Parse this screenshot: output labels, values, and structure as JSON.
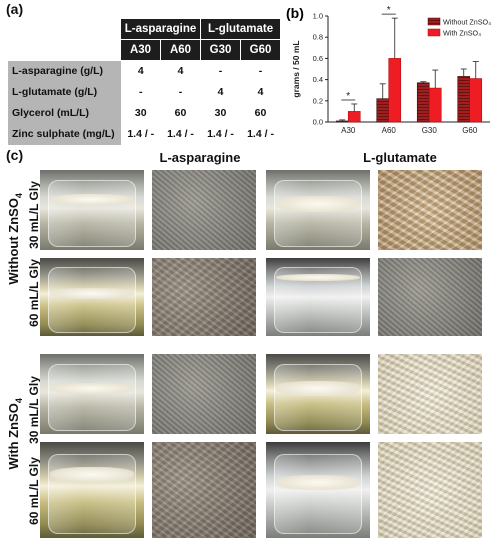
{
  "panels": {
    "a": "(a)",
    "b": "(b)",
    "c": "(c)"
  },
  "table": {
    "group_headers": [
      "L-asparagine",
      "L-glutamate"
    ],
    "columns": [
      "A30",
      "A60",
      "G30",
      "G60"
    ],
    "rows": [
      {
        "label": "L-asparagine (g/L)",
        "values": [
          "4",
          "4",
          "-",
          "-"
        ]
      },
      {
        "label": "L-glutamate (g/L)",
        "values": [
          "-",
          "-",
          "4",
          "4"
        ]
      },
      {
        "label": "Glycerol (mL/L)",
        "values": [
          "30",
          "60",
          "30",
          "60"
        ]
      },
      {
        "label": "Zinc sulphate (mg/L)",
        "values": [
          "1.4 / -",
          "1.4 / -",
          "1.4 / -",
          "1.4 / -"
        ]
      }
    ]
  },
  "chart_data": {
    "type": "bar",
    "categories": [
      "A30",
      "A60",
      "G30",
      "G60"
    ],
    "series": [
      {
        "name": "Without ZnSO₄",
        "values": [
          0.01,
          0.22,
          0.37,
          0.43
        ],
        "errors": [
          0.01,
          0.14,
          0.01,
          0.07
        ],
        "color": "#9e1f1f"
      },
      {
        "name": "With ZnSO₄",
        "values": [
          0.1,
          0.6,
          0.32,
          0.41
        ],
        "errors": [
          0.07,
          0.38,
          0.17,
          0.16
        ],
        "color": "#ee1d23"
      }
    ],
    "ylabel": "grams / 50 mL",
    "ylim": [
      0,
      1.0
    ],
    "yticks": [
      "0.0",
      "0.2",
      "0.4",
      "0.6",
      "0.8",
      "1.0"
    ],
    "significance": [
      {
        "category": "A30",
        "label": "*"
      },
      {
        "category": "A60",
        "label": "*"
      }
    ],
    "legend_position": "top-right",
    "grid": false
  },
  "panel_c": {
    "columns": [
      "L-asparagine",
      "L-glutamate"
    ],
    "groups": [
      {
        "label": "Without ZnSO",
        "subscript": "4"
      },
      {
        "label": "With ZnSO",
        "subscript": "4"
      }
    ],
    "rows": [
      "30 mL/L Gly",
      "60 mL/L Gly",
      "30 mL/L Gly",
      "60 mL/L Gly"
    ]
  }
}
